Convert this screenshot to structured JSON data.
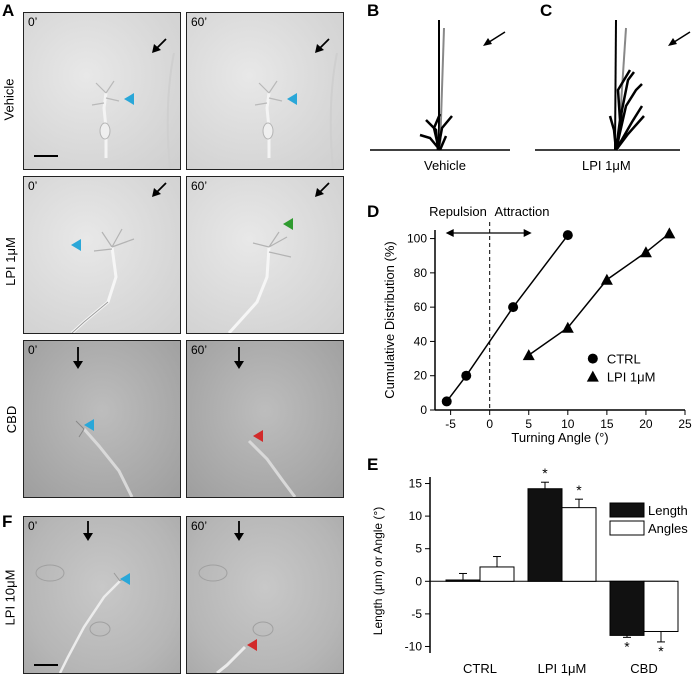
{
  "panel_letters": {
    "A": "A",
    "B": "B",
    "C": "C",
    "D": "D",
    "E": "E",
    "F": "F"
  },
  "row_labels": {
    "vehicle": "Vehicle",
    "lpi1": "LPI 1μM",
    "cbd": "CBD",
    "lpi10": "LPI 10μM"
  },
  "time_labels": {
    "t0": "0’",
    "t60": "60’"
  },
  "traces": {
    "vehicle_label": "Vehicle",
    "lpi_label": "LPI 1μM"
  },
  "colors": {
    "blue_arrowhead": "#2aa7d8",
    "green_arrowhead": "#2f9b2f",
    "red_arrowhead": "#d22a2a"
  },
  "chart_data": [
    {
      "id": "D",
      "type": "line",
      "title": "",
      "xlabel": "Turning Angle (°)",
      "ylabel": "Cumulative Distribution (%)",
      "xlim": [
        -7,
        25
      ],
      "ylim": [
        0,
        105
      ],
      "xticks": [
        -5,
        0,
        5,
        10,
        15,
        20,
        25
      ],
      "yticks": [
        0,
        20,
        40,
        60,
        80,
        100
      ],
      "annotations": {
        "left": "Repulsion",
        "right": "Attraction"
      },
      "series": [
        {
          "name": "CTRL",
          "marker": "circle",
          "x": [
            -5.5,
            -3,
            3,
            10
          ],
          "y": [
            5,
            20,
            60,
            102
          ]
        },
        {
          "name": "LPI 1μM",
          "marker": "triangle",
          "x": [
            5,
            10,
            15,
            20,
            23
          ],
          "y": [
            32,
            48,
            76,
            92,
            103
          ]
        }
      ]
    },
    {
      "id": "E",
      "type": "bar",
      "ylabel": "Length (μm) or Angle (°)",
      "ylim": [
        -11,
        16
      ],
      "yticks": [
        -10,
        -5,
        0,
        5,
        10,
        15
      ],
      "categories": [
        "CTRL",
        "LPI 1μM",
        "CBD"
      ],
      "series": [
        {
          "name": "Length",
          "fill": "#111111",
          "values": [
            0.2,
            14.2,
            -8.3
          ],
          "errors": [
            1.0,
            1.0,
            0.3
          ],
          "sig": [
            "",
            "*",
            "*"
          ]
        },
        {
          "name": "Angles",
          "fill": "#ffffff",
          "values": [
            2.2,
            11.3,
            -7.7
          ],
          "errors": [
            1.6,
            1.3,
            1.6
          ],
          "sig": [
            "",
            "*",
            "*"
          ]
        }
      ]
    }
  ]
}
